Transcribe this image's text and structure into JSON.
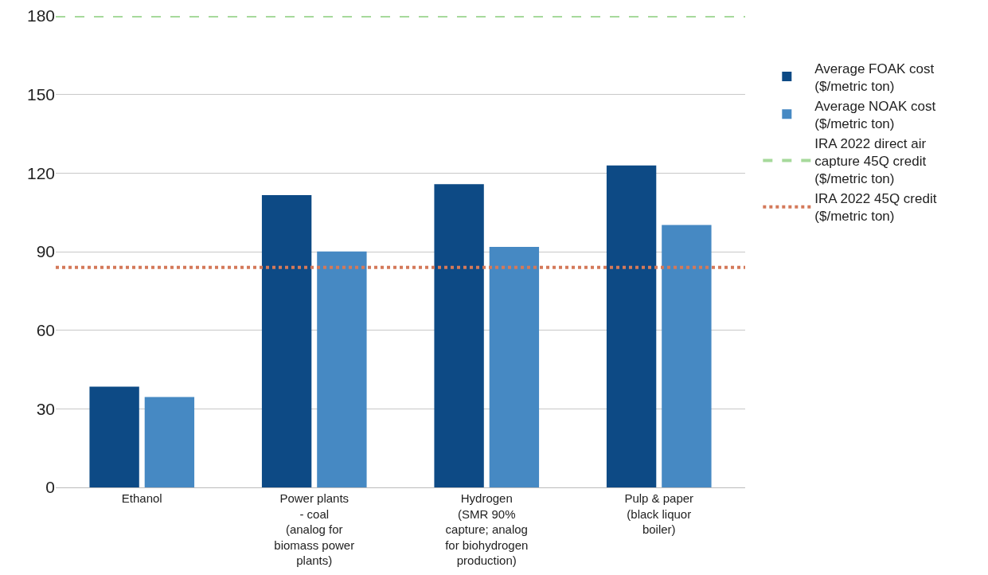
{
  "chart_data": {
    "type": "bar",
    "categories": [
      "Ethanol",
      "Power plants\n- coal\n(analog for\nbiomass power\nplants)",
      "Hydrogen\n(SMR 90%\ncapture; analog\nfor biohydrogen\nproduction)",
      "Pulp & paper\n(black liquor\nboiler)"
    ],
    "series": [
      {
        "name": "Average FOAK cost\n($/metric ton)",
        "color": "#0d4a85",
        "values": [
          38.5,
          111.6,
          115.8,
          122.9
        ]
      },
      {
        "name": "Average NOAK cost\n($/metric ton)",
        "color": "#4689c3",
        "values": [
          34.5,
          90.1,
          91.8,
          100.2
        ]
      }
    ],
    "ref_lines": [
      {
        "axis": "y",
        "value": 180,
        "label": "IRA 2022 direct air\ncapture 45Q credit\n($/metric ton)",
        "color": "#a6d99b",
        "line_style": "dashed"
      },
      {
        "axis": "y",
        "value": 84,
        "label": "IRA 2022 45Q credit\n($/metric ton)",
        "color": "#d4795a",
        "line_style": "dotted"
      }
    ],
    "ylim": [
      0,
      180
    ],
    "yticks": [
      0,
      30,
      60,
      90,
      120,
      150,
      180
    ],
    "grid": "y",
    "legend": "right"
  }
}
